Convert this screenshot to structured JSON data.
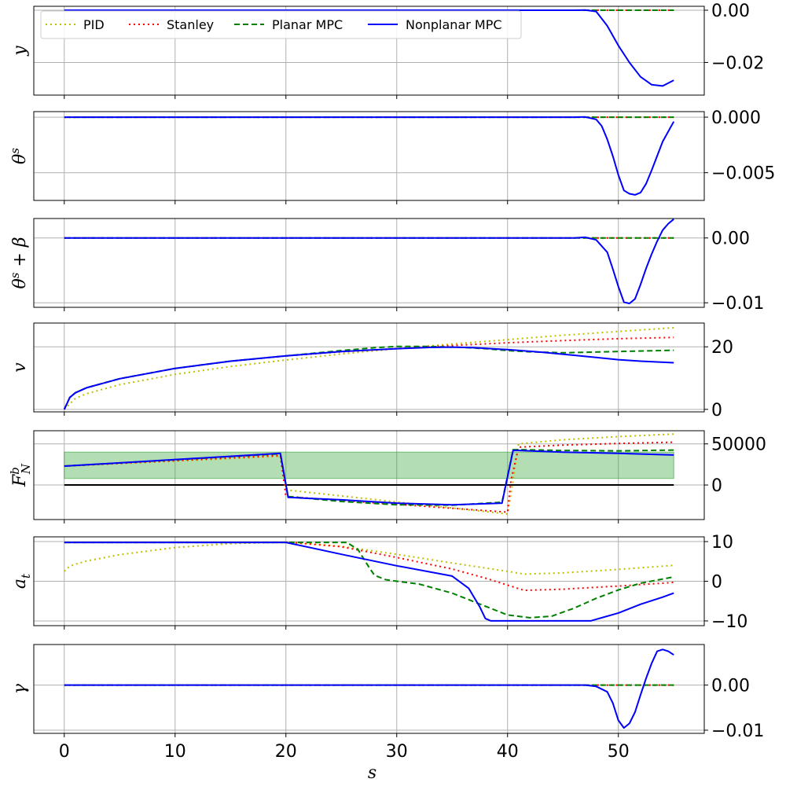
{
  "chart_data": {
    "type": "line",
    "xlabel": "s",
    "xlim": [
      -2.75,
      57.75
    ],
    "xticks": [
      0,
      10,
      20,
      30,
      40,
      50
    ],
    "xtick_labels": [
      "0",
      "10",
      "20",
      "30",
      "40",
      "50"
    ],
    "grid": true,
    "legend": {
      "placement": "top-left of first panel",
      "columns": 4,
      "entries": [
        {
          "name": "PID",
          "color": "#bfbf00",
          "style": "dotted"
        },
        {
          "name": "Stanley",
          "color": "#ff0000",
          "style": "dotted"
        },
        {
          "name": "Planar MPC",
          "color": "#008000",
          "style": "dashed"
        },
        {
          "name": "Nonplanar MPC",
          "color": "#0000ff",
          "style": "solid"
        }
      ]
    },
    "panels": [
      {
        "ylabel": "y",
        "ylabel_tex": [
          [
            "y",
            ""
          ]
        ],
        "ylim": [
          -0.0325,
          0.0015
        ],
        "yticks": [
          0,
          -0.02
        ],
        "ytick_labels": [
          "0.00",
          "−0.02"
        ],
        "series": [
          {
            "name": "PID",
            "x": [
              0,
              55
            ],
            "y": [
              0,
              0
            ]
          },
          {
            "name": "Stanley",
            "x": [
              0,
              55
            ],
            "y": [
              0,
              0
            ]
          },
          {
            "name": "Planar MPC",
            "x": [
              0,
              47,
              55
            ],
            "y": [
              0,
              0,
              0
            ]
          },
          {
            "name": "Nonplanar MPC",
            "x": [
              0,
              46,
              47,
              48,
              49,
              50,
              51,
              52,
              53,
              54,
              55
            ],
            "y": [
              0,
              0,
              0.0001,
              -0.0005,
              -0.006,
              -0.0135,
              -0.02,
              -0.0255,
              -0.0285,
              -0.029,
              -0.0268
            ]
          }
        ]
      },
      {
        "ylabel": "θ^s",
        "ylabel_tex": [
          [
            "θ",
            ""
          ],
          [
            "s",
            "sup"
          ]
        ],
        "ylim": [
          -0.0075,
          0.0005
        ],
        "yticks": [
          0,
          -0.005
        ],
        "ytick_labels": [
          "0.000",
          "−0.005"
        ],
        "series": [
          {
            "name": "PID",
            "x": [
              0,
              55
            ],
            "y": [
              0,
              0
            ]
          },
          {
            "name": "Stanley",
            "x": [
              0,
              55
            ],
            "y": [
              0,
              0
            ]
          },
          {
            "name": "Planar MPC",
            "x": [
              0,
              47,
              55
            ],
            "y": [
              0,
              0,
              0
            ]
          },
          {
            "name": "Nonplanar MPC",
            "x": [
              0,
              46,
              47,
              48,
              48.5,
              49,
              49.5,
              50,
              50.5,
              51,
              51.5,
              52,
              52.5,
              53,
              54,
              55
            ],
            "y": [
              0,
              0,
              2e-05,
              -0.0002,
              -0.0008,
              -0.002,
              -0.0035,
              -0.0052,
              -0.0066,
              -0.0069,
              -0.007,
              -0.0068,
              -0.006,
              -0.0048,
              -0.0022,
              -0.0004
            ]
          }
        ]
      },
      {
        "ylabel": "θ^s + β",
        "ylabel_tex": [
          [
            "θ",
            ""
          ],
          [
            "s",
            "sup"
          ],
          [
            " + β",
            ""
          ]
        ],
        "ylim": [
          -0.0107,
          0.003
        ],
        "yticks": [
          0,
          -0.01
        ],
        "ytick_labels": [
          "0.00",
          "−0.01"
        ],
        "series": [
          {
            "name": "PID",
            "x": [
              0,
              55
            ],
            "y": [
              0,
              0
            ]
          },
          {
            "name": "Stanley",
            "x": [
              0,
              55
            ],
            "y": [
              0,
              0
            ]
          },
          {
            "name": "Planar MPC",
            "x": [
              0,
              47,
              55
            ],
            "y": [
              0,
              0,
              0
            ]
          },
          {
            "name": "Nonplanar MPC",
            "x": [
              0,
              46,
              47,
              48,
              49,
              49.5,
              50,
              50.5,
              51,
              51.5,
              52,
              52.5,
              53,
              53.5,
              54,
              54.5,
              55
            ],
            "y": [
              0,
              0,
              0.0001,
              -0.0003,
              -0.0022,
              -0.0048,
              -0.0075,
              -0.0099,
              -0.0101,
              -0.0094,
              -0.0072,
              -0.0047,
              -0.0025,
              -0.0005,
              0.0012,
              0.0022,
              0.0029
            ]
          }
        ]
      },
      {
        "ylabel": "v",
        "ylabel_tex": [
          [
            "v",
            ""
          ]
        ],
        "ylim": [
          -0.8,
          27.6
        ],
        "yticks": [
          20,
          0
        ],
        "ytick_labels": [
          "20",
          "0"
        ],
        "series": [
          {
            "name": "PID",
            "x": [
              0,
              1,
              2,
              5,
              10,
              15,
              20,
              25,
              30,
              35,
              40,
              45,
              50,
              55
            ],
            "y": [
              0,
              3.5,
              5,
              7.9,
              11.2,
              13.7,
              15.8,
              17.7,
              19.4,
              20.9,
              22.3,
              23.7,
              24.9,
              26.1
            ]
          },
          {
            "name": "Stanley",
            "x": [
              0,
              0.5,
              1,
              2,
              5,
              10,
              15,
              20,
              25,
              30,
              35,
              40,
              45,
              50,
              55
            ],
            "y": [
              0,
              3.8,
              5.3,
              6.9,
              9.8,
              13.1,
              15.4,
              17.1,
              18.4,
              19.4,
              20.4,
              21.3,
              22,
              22.6,
              23
            ]
          },
          {
            "name": "Planar MPC",
            "x": [
              0,
              0.5,
              1,
              2,
              5,
              10,
              15,
              20,
              25,
              28,
              30,
              33,
              36,
              38,
              40,
              42,
              45,
              50,
              55
            ],
            "y": [
              0,
              3.8,
              5.3,
              6.9,
              9.8,
              13.1,
              15.4,
              17.1,
              18.8,
              19.7,
              20.1,
              20.1,
              19.8,
              19.4,
              18.8,
              18.4,
              18.1,
              18.5,
              18.9
            ]
          },
          {
            "name": "Nonplanar MPC",
            "x": [
              0,
              0.5,
              1,
              2,
              5,
              10,
              15,
              20,
              25,
              30,
              33,
              35,
              37,
              40,
              43,
              46,
              48,
              50,
              52,
              55
            ],
            "y": [
              0,
              3.8,
              5.3,
              6.9,
              9.8,
              13.1,
              15.4,
              17.1,
              18.5,
              19.4,
              19.8,
              19.9,
              19.7,
              19.1,
              18.3,
              17.3,
              16.6,
              15.9,
              15.4,
              14.9
            ]
          }
        ]
      },
      {
        "ylabel": "F^b_N",
        "ylabel_tex": [
          [
            "F",
            ""
          ],
          [
            "b",
            "supsub",
            "N"
          ]
        ],
        "ylim": [
          -42000,
          66000
        ],
        "yticks": [
          50000,
          0
        ],
        "ytick_labels": [
          "50000",
          "0"
        ],
        "band": {
          "from": 0,
          "to": 55,
          "y_low": 8000,
          "y_high": 40000,
          "color": "#2ca02c",
          "opacity": 0.36
        },
        "zero_line": {
          "y": 0,
          "from": 0,
          "to": 55,
          "color": "#000000"
        },
        "series": [
          {
            "name": "PID",
            "x": [
              0,
              19.5,
              20,
              40,
              40.3,
              41,
              45,
              50,
              55
            ],
            "y": [
              23000,
              34800,
              -6000,
              -35200,
              -12000,
              50000,
              55000,
              58800,
              62000
            ]
          },
          {
            "name": "Stanley",
            "x": [
              0,
              19.5,
              20,
              40,
              40.3,
              41,
              45,
              50,
              55
            ],
            "y": [
              23000,
              36000,
              -14000,
              -33000,
              5000,
              46000,
              48500,
              50500,
              52000
            ]
          },
          {
            "name": "Planar MPC",
            "x": [
              0,
              19.5,
              20.2,
              25,
              30,
              35,
              39.5,
              40.5,
              41,
              45,
              50,
              55
            ],
            "y": [
              23000,
              38000,
              -14000,
              -20000,
              -24000,
              -24500,
              -21000,
              43000,
              43000,
              42000,
              41500,
              42500
            ]
          },
          {
            "name": "Nonplanar MPC",
            "x": [
              0,
              19.5,
              20.2,
              25,
              30,
              35,
              39.5,
              40.5,
              41,
              45,
              50,
              55
            ],
            "y": [
              23000,
              38500,
              -15000,
              -18000,
              -22000,
              -24000,
              -22000,
              42000,
              42000,
              40000,
              38500,
              36500
            ]
          }
        ]
      },
      {
        "ylabel": "a_t",
        "ylabel_tex": [
          [
            "a",
            ""
          ],
          [
            "t",
            "sub"
          ]
        ],
        "ylim": [
          -11.2,
          11.2
        ],
        "yticks": [
          10,
          0,
          -10
        ],
        "ytick_labels": [
          "10",
          "0",
          "−10"
        ],
        "series": [
          {
            "name": "PID",
            "x": [
              0,
              0.5,
              1,
              2,
              5,
              10,
              15,
              20,
              25,
              30,
              35,
              40,
              41.5,
              45,
              50,
              55
            ],
            "y": [
              2.5,
              3.8,
              4.3,
              5.1,
              6.7,
              8.5,
              9.5,
              9.9,
              8.8,
              6.8,
              4.6,
              2.5,
              1.8,
              2.1,
              3,
              4
            ]
          },
          {
            "name": "Stanley",
            "x": [
              0,
              20.5,
              25,
              30,
              35,
              38,
              41.5,
              45,
              50,
              55
            ],
            "y": [
              9.8,
              9.8,
              8.7,
              6,
              3.1,
              0.8,
              -2.3,
              -2,
              -1.2,
              -0.3
            ]
          },
          {
            "name": "Planar MPC",
            "x": [
              0,
              20.2,
              25.5,
              26.5,
              27.5,
              28,
              29,
              30,
              32,
              35,
              38,
              40,
              42,
              44,
              46,
              48,
              50,
              52,
              55
            ],
            "y": [
              9.8,
              9.8,
              9.8,
              8,
              3.5,
              1.5,
              0.4,
              0,
              -0.7,
              -3,
              -6.3,
              -8.5,
              -9.2,
              -8.8,
              -6.8,
              -4.3,
              -2.2,
              -0.5,
              1.1
            ]
          },
          {
            "name": "Nonplanar MPC",
            "x": [
              0,
              20,
              25,
              30,
              35,
              36.5,
              37.5,
              38,
              38.5,
              45,
              47.5,
              50,
              52,
              54,
              55
            ],
            "y": [
              9.8,
              9.8,
              6.8,
              3.9,
              1.3,
              -1.8,
              -6.5,
              -9.4,
              -10,
              -10,
              -10,
              -8,
              -5.8,
              -4,
              -3
            ]
          }
        ]
      },
      {
        "ylabel": "γ",
        "ylabel_tex": [
          [
            "γ",
            ""
          ]
        ],
        "ylim": [
          -0.0107,
          0.009
        ],
        "yticks": [
          0,
          -0.01
        ],
        "ytick_labels": [
          "0.00",
          "−0.01"
        ],
        "series": [
          {
            "name": "PID",
            "x": [
              0,
              55
            ],
            "y": [
              0,
              0
            ]
          },
          {
            "name": "Stanley",
            "x": [
              0,
              55
            ],
            "y": [
              0,
              0
            ]
          },
          {
            "name": "Planar MPC",
            "x": [
              0,
              47,
              55
            ],
            "y": [
              0,
              0,
              0
            ]
          },
          {
            "name": "Nonplanar MPC",
            "x": [
              0,
              46.5,
              47,
              48,
              49,
              49.5,
              50,
              50.5,
              51,
              51.5,
              52,
              52.5,
              53,
              53.5,
              54,
              54.5,
              55
            ],
            "y": [
              0,
              0,
              0,
              -0.0003,
              -0.0015,
              -0.004,
              -0.0078,
              -0.0095,
              -0.0085,
              -0.006,
              -0.0022,
              0.0015,
              0.0048,
              0.0075,
              0.0079,
              0.0075,
              0.0067
            ]
          }
        ]
      }
    ]
  }
}
